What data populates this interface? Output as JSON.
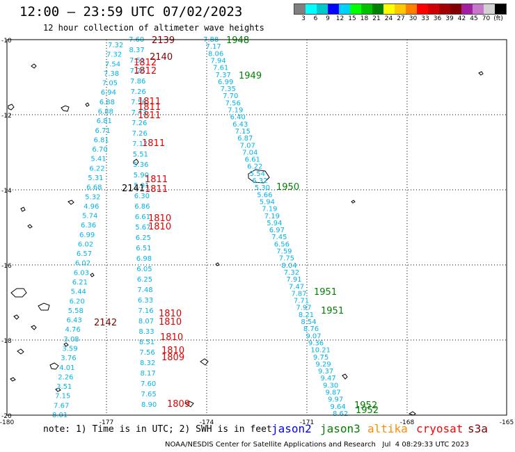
{
  "header": {
    "title": "12:00 – 23:59 UTC 07/02/2023",
    "subtitle": "12 hour collection of altimeter wave heights"
  },
  "legend": {
    "colors": [
      "#7f7f7f",
      "#00ffff",
      "#00c8c8",
      "#0000ff",
      "#00d2ff",
      "#00ff00",
      "#00c000",
      "#008000",
      "#ffff00",
      "#ffc800",
      "#ff8000",
      "#ff0000",
      "#d00000",
      "#a00000",
      "#800000",
      "#a020a0",
      "#c878c8",
      "#d2d2d2",
      "#000000"
    ],
    "ticks": [
      "3",
      "6",
      "9",
      "12",
      "15",
      "18",
      "21",
      "24",
      "27",
      "30",
      "33",
      "36",
      "39",
      "42",
      "45",
      "70",
      "(ft)"
    ]
  },
  "axes": {
    "y_labels": [
      "-10",
      "-12",
      "-14",
      "-16",
      "-18",
      "-20"
    ],
    "x_labels": [
      "-180",
      "-177",
      "-174",
      "-171",
      "-168",
      "-165"
    ]
  },
  "tracks": [
    {
      "name": "left_a",
      "color": "#00b4e8",
      "values": [
        "7.32",
        "7.32",
        "7.54",
        "7.38",
        "7.05",
        "6.94",
        "6.88",
        "6.88",
        "6.81",
        "6.71",
        "6.81",
        "6.70",
        "5.41",
        "6.22",
        "5.31",
        "6.68",
        "5.32",
        "4.96",
        "5.74",
        "6.36",
        "6.99",
        "6.02",
        "6.57",
        "6.02",
        "6.03",
        "6.21",
        "5.44",
        "6.20",
        "5.58",
        "6.43",
        "4.76",
        "3.08",
        "3.59",
        "3.76",
        "4.01",
        "2.26",
        "3.51",
        "7.15",
        "7.67",
        "8.01"
      ]
    },
    {
      "name": "left_b",
      "color": "#00b4e8",
      "values": [
        "7.60",
        "8.37",
        "7.51",
        "7.26",
        "7.86",
        "7.26",
        "7.56",
        "7.43",
        "7.26",
        "7.26",
        "7.12",
        "5.51",
        "5.36",
        "5.90",
        "5.91",
        "6.30",
        "6.86",
        "6.61",
        "5.67",
        "6.25",
        "6.51",
        "6.98",
        "6.05",
        "6.25",
        "7.48",
        "6.33",
        "7.16",
        "8.07",
        "8.33",
        "8.51",
        "7.56",
        "8.32",
        "8.17",
        "7.60",
        "7.65",
        "8.90"
      ]
    },
    {
      "name": "right",
      "color": "#00b4e8",
      "values": [
        "7.88",
        "7.17",
        "8.06",
        "7.94",
        "7.61",
        "7.37",
        "6.99",
        "7.35",
        "7.70",
        "7.56",
        "7.19",
        "6.40",
        "6.43",
        "7.15",
        "6.87",
        "7.07",
        "7.04",
        "6.61",
        "6.22",
        "5.54",
        "6.32",
        "5.30",
        "5.66",
        "5.94",
        "7.19",
        "7.19",
        "5.94",
        "6.97",
        "7.45",
        "6.56",
        "7.59",
        "7.75",
        "8.04",
        "7.32",
        "7.91",
        "7.47",
        "7.87",
        "7.71",
        "7.97",
        "8.21",
        "8.54",
        "8.76",
        "9.07",
        "9.36",
        "10.21",
        "9.75",
        "9.29",
        "9.37",
        "9.47",
        "9.30",
        "9.87",
        "9.97",
        "9.64",
        "8.62"
      ]
    }
  ],
  "times": {
    "dark_red": [
      "2139",
      "2140",
      "2141",
      "2142"
    ],
    "red": [
      "1812",
      "1812",
      "1811",
      "1811",
      "1811",
      "1811",
      "1811",
      "1811",
      "1810",
      "1810",
      "1810",
      "1810",
      "1810",
      "1810",
      "1809",
      "1809"
    ],
    "green": [
      "1948",
      "1949",
      "1950",
      "1951",
      "1951",
      "1952",
      "1952"
    ]
  },
  "note": "note: 1) Time is in UTC; 2) SWH is in feet",
  "satellites": [
    {
      "label": "jason2",
      "color": "#0000ff"
    },
    {
      "label": "jason3",
      "color": "#008000"
    },
    {
      "label": "altika",
      "color": "#ff8c00"
    },
    {
      "label": "cryosat",
      "color": "#ff0000"
    },
    {
      "label": "s3a",
      "color": "#800000"
    }
  ],
  "footer": "NOAA/NESDIS Center for Satellite Applications and Research   Jul  4 08:29:33 UTC 2023"
}
